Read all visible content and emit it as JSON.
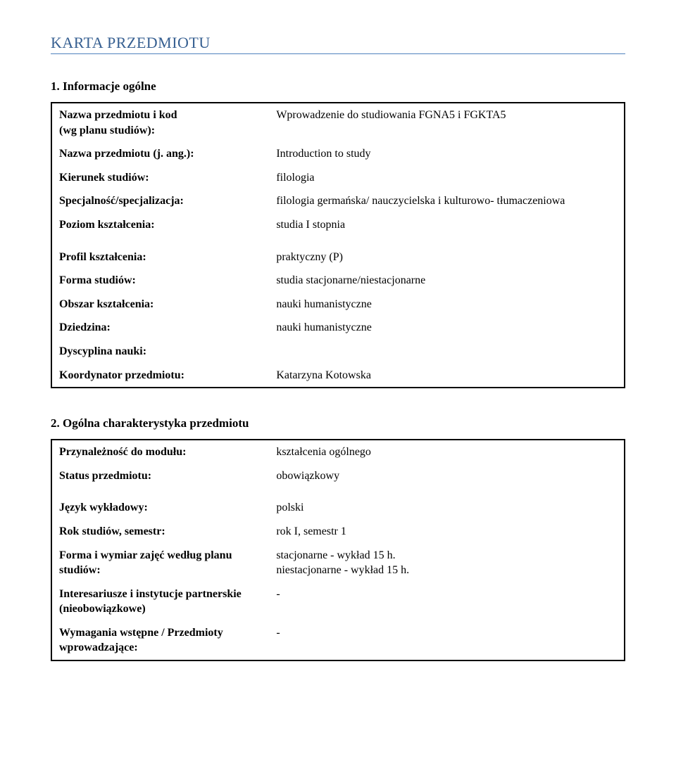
{
  "page_title": "KARTA PRZEDMIOTU",
  "section1": {
    "heading": "1. Informacje ogólne",
    "rows": [
      {
        "label": "Nazwa przedmiotu i kod\n(wg planu studiów):",
        "value": "Wprowadzenie do studiowania FGNA5 i FGKTA5"
      },
      {
        "label": "Nazwa przedmiotu (j. ang.):",
        "value": "Introduction to study"
      },
      {
        "label": "Kierunek studiów:",
        "value": "filologia"
      },
      {
        "label": "Specjalność/specjalizacja:",
        "value": "filologia germańska/ nauczycielska i kulturowo- tłumaczeniowa"
      },
      {
        "label": "Poziom kształcenia:",
        "value": "studia I stopnia"
      },
      {
        "label": "Profil kształcenia:",
        "value": "praktyczny (P)"
      },
      {
        "label": "Forma studiów:",
        "value": "studia stacjonarne/niestacjonarne"
      },
      {
        "label": "Obszar kształcenia:",
        "value": "nauki humanistyczne"
      },
      {
        "label": "Dziedzina:",
        "value": "nauki humanistyczne"
      },
      {
        "label": "Dyscyplina nauki:",
        "value": ""
      },
      {
        "label": "Koordynator przedmiotu:",
        "value": "Katarzyna Kotowska"
      }
    ]
  },
  "section2": {
    "heading": "2. Ogólna charakterystyka przedmiotu",
    "rows": [
      {
        "label": "Przynależność do modułu:",
        "value": "kształcenia ogólnego"
      },
      {
        "label": "Status przedmiotu:",
        "value": "obowiązkowy"
      },
      {
        "label": "Język wykładowy:",
        "value": "polski"
      },
      {
        "label": "Rok studiów, semestr:",
        "value": "rok I, semestr 1"
      },
      {
        "label": "Forma i wymiar zajęć według planu studiów:",
        "value": "stacjonarne - wykład 15 h.\nniestacjonarne - wykład 15 h."
      },
      {
        "label": "Interesariusze i instytucje partnerskie (nieobowiązkowe)",
        "value": "-"
      },
      {
        "label": "Wymagania wstępne / Przedmioty wprowadzające:",
        "value": "-"
      }
    ]
  }
}
